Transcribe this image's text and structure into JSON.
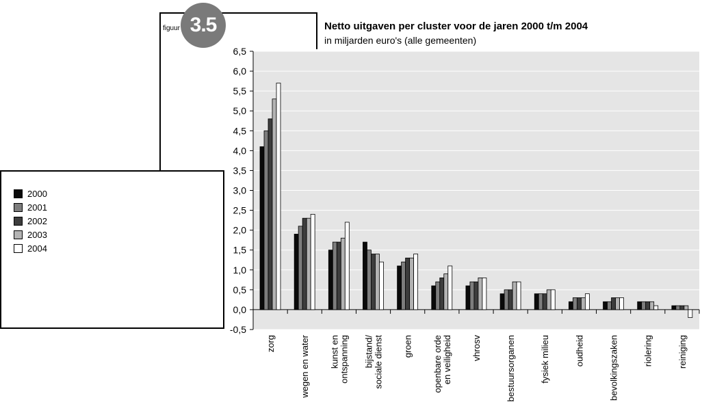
{
  "figure": {
    "label": "figuur",
    "number": "3.5"
  },
  "colors": {
    "2000": "#0a0a0a",
    "2001": "#7d7d7d",
    "2002": "#3d3d3d",
    "2003": "#b3b3b3",
    "2004": "#ffffff",
    "plot_background": "#e5e5e5",
    "badge": "#7a7a7a"
  },
  "chart_data": {
    "type": "bar",
    "title": "Netto uitgaven per cluster voor de jaren 2000 t/m 2004",
    "subtitle": "in miljarden euro's (alle gemeenten)",
    "xlabel": "",
    "ylabel": "",
    "ylim": [
      -0.5,
      6.5
    ],
    "yticks": [
      "6,5",
      "6,0",
      "5,5",
      "5,0",
      "4,5",
      "4,0",
      "3,5",
      "3,0",
      "2,5",
      "2,0",
      "1,5",
      "1,0",
      "0,5",
      "0,0",
      "-0,5"
    ],
    "grid": true,
    "legend_position": "left",
    "categories": [
      "zorg",
      "wegen en water",
      "kunst en\nontspanning",
      "bijstand/\nsociale dienst",
      "groen",
      "openbare orde\nen veiligheid",
      "vhrosv",
      "bestuursorganen",
      "fysiek milieu",
      "oudheid",
      "bevolkingszaken",
      "riolering",
      "reiniging"
    ],
    "series": [
      {
        "name": "2000",
        "values": [
          4.1,
          1.9,
          1.5,
          1.7,
          1.1,
          0.6,
          0.6,
          0.4,
          0.4,
          0.2,
          0.2,
          0.2,
          0.1
        ]
      },
      {
        "name": "2001",
        "values": [
          4.5,
          2.1,
          1.7,
          1.5,
          1.2,
          0.7,
          0.7,
          0.5,
          0.4,
          0.3,
          0.2,
          0.2,
          0.1
        ]
      },
      {
        "name": "2002",
        "values": [
          4.8,
          2.3,
          1.7,
          1.4,
          1.3,
          0.8,
          0.7,
          0.5,
          0.4,
          0.3,
          0.3,
          0.2,
          0.1
        ]
      },
      {
        "name": "2003",
        "values": [
          5.3,
          2.3,
          1.8,
          1.4,
          1.3,
          0.9,
          0.8,
          0.7,
          0.5,
          0.3,
          0.3,
          0.2,
          0.1
        ]
      },
      {
        "name": "2004",
        "values": [
          5.7,
          2.4,
          2.2,
          1.2,
          1.4,
          1.1,
          0.8,
          0.7,
          0.5,
          0.4,
          0.3,
          0.1,
          -0.2
        ]
      }
    ]
  }
}
